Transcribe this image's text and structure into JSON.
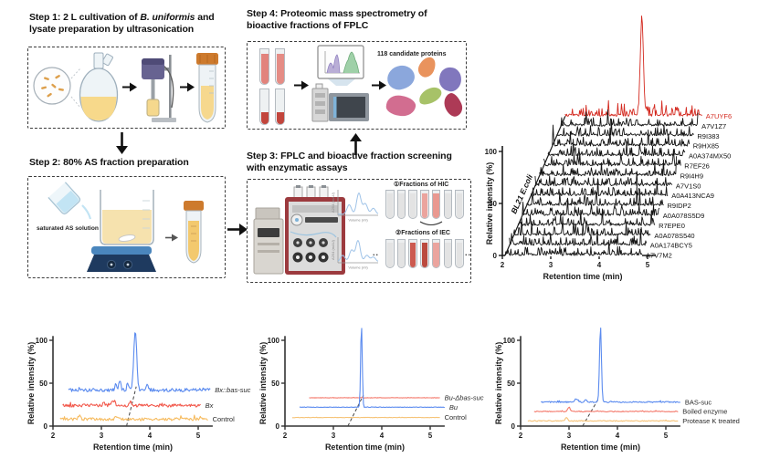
{
  "steps": {
    "step1": {
      "title_prefix": "Step 1: 2 L cultivation of ",
      "title_italic": "B. uniformis",
      "title_suffix": " and lysate preparation by ultrasonication"
    },
    "step2": {
      "title": "Step 2: 80% AS fraction preparation",
      "beaker_label": "saturated AS solution"
    },
    "step3": {
      "title_line1": "Step 3: FPLC and bioactive fraction screening",
      "title_line2": "with enzymatic assays",
      "hic_label": "①Fractions of HIC",
      "iec_label": "②Fractions of IEC",
      "ellipsis": "..",
      "mini_chart_ylabel": "A254 (mAU)",
      "mini_chart_xlabel": "Volume (ml)",
      "mini_charts": [
        {
          "bumps": [
            [
              0.28,
              0.45
            ],
            [
              0.52,
              1.0
            ],
            [
              0.68,
              0.5
            ],
            [
              0.88,
              0.28
            ]
          ]
        },
        {
          "bumps": [
            [
              0.12,
              0.3
            ],
            [
              0.34,
              0.55
            ],
            [
              0.5,
              1.0
            ],
            [
              0.72,
              0.3
            ],
            [
              0.88,
              0.22
            ]
          ]
        }
      ]
    },
    "step4": {
      "title_line1": "Step 4: Proteomic mass spectrometry of",
      "title_line2": "bioactive fractions of FPLC",
      "proteins_label": "118 candidate proteins"
    }
  },
  "chart_data": [
    {
      "type": "line-waterfall",
      "panel": "top-right",
      "ylabel": "Relative intensity (%)",
      "xlabel": "Retention time (min)",
      "yticks": [
        0,
        50,
        100
      ],
      "xticks": [
        2,
        3,
        4,
        5
      ],
      "xlim": [
        2,
        5
      ],
      "diagonal_label": "BL21 E.coli",
      "trace_color": "#141414",
      "highlight_color": "#d42a20",
      "note": "Stacked extracted-ion chromatograms of candidate proteins; A7UYF6 (red, rear trace) shows one dominant peak near 4.2 min, all others are noise-level",
      "traces": [
        {
          "label": "A7UYF6",
          "highlight": true,
          "peak_min": 4.2,
          "seed": 7
        },
        {
          "label": "A7V1Z7",
          "seed": 2
        },
        {
          "label": "R9I383",
          "seed": 3
        },
        {
          "label": "R9HX85",
          "seed": 4
        },
        {
          "label": "A0A374MX50",
          "seed": 5
        },
        {
          "label": "R7EF26",
          "seed": 6
        },
        {
          "label": "R9I4H9",
          "seed": 8
        },
        {
          "label": "A7V1S0",
          "seed": 9
        },
        {
          "label": "A0A413NCA9",
          "seed": 10
        },
        {
          "label": "R9IDP2",
          "seed": 11
        },
        {
          "label": "A0A078S5D9",
          "seed": 12
        },
        {
          "label": "R7EPE0",
          "seed": 13
        },
        {
          "label": "A0A078S540",
          "seed": 14
        },
        {
          "label": "A0A174BCY5",
          "seed": 15
        },
        {
          "label": "A7V7M2",
          "seed": 16
        }
      ]
    },
    {
      "type": "line",
      "panel": "bottom-left",
      "ylabel": "Relative intensity (%)",
      "xlabel": "Retention time (min)",
      "yticks": [
        0,
        50,
        100
      ],
      "xticks": [
        2,
        3,
        4,
        5
      ],
      "xlim": [
        2,
        5.35
      ],
      "dash_line": {
        "t1": 3.52,
        "y1": 0,
        "t2": 3.72,
        "y2": 46
      },
      "series": [
        {
          "label": "Bx::bas-suc",
          "italic": true,
          "color": "#5b8bef",
          "baseline": 42,
          "noise": 2.0,
          "t_start": 2.32,
          "t_end": 5.25,
          "seed": 41,
          "peaks": [
            {
              "t": 3.7,
              "h": 70,
              "w": 0.03
            },
            {
              "t": 3.38,
              "h": 11,
              "w": 0.022
            },
            {
              "t": 3.3,
              "h": 7,
              "w": 0.018
            },
            {
              "t": 3.55,
              "h": 8,
              "w": 0.018
            },
            {
              "t": 3.95,
              "h": 5,
              "w": 0.02
            }
          ]
        },
        {
          "label": "Bx",
          "italic": true,
          "color": "#f2594c",
          "baseline": 24,
          "noise": 1.8,
          "t_start": 2.2,
          "t_end": 5.05,
          "seed": 42,
          "peaks": [
            {
              "t": 3.25,
              "h": 6,
              "w": 0.03
            },
            {
              "t": 3.05,
              "h": 4,
              "w": 0.02
            },
            {
              "t": 3.6,
              "h": 4,
              "w": 0.02
            }
          ]
        },
        {
          "label": "Control",
          "italic": false,
          "color": "#f6bb5f",
          "baseline": 8,
          "noise": 1.6,
          "t_start": 2.15,
          "t_end": 5.2,
          "seed": 43,
          "peaks": [
            {
              "t": 2.55,
              "h": 4,
              "w": 0.02
            },
            {
              "t": 3.3,
              "h": 4,
              "w": 0.02
            }
          ]
        }
      ]
    },
    {
      "type": "line",
      "panel": "bottom-middle",
      "ylabel": "Relative intensity (%)",
      "xlabel": "Retention time (min)",
      "yticks": [
        0,
        50,
        100
      ],
      "xticks": [
        2,
        3,
        4,
        5
      ],
      "xlim": [
        2,
        5.35
      ],
      "dash_line": {
        "t1": 3.3,
        "y1": 0,
        "t2": 3.62,
        "y2": 36
      },
      "series": [
        {
          "label": "Bu-Δbas-suc",
          "italic": true,
          "color": "#f4796b",
          "baseline": 33,
          "noise": 0.25,
          "t_start": 2.5,
          "t_end": 5.2,
          "seed": 51,
          "peaks": []
        },
        {
          "label": "Bu",
          "italic": true,
          "color": "#5b8bef",
          "baseline": 22,
          "noise": 0.25,
          "t_start": 2.3,
          "t_end": 5.3,
          "seed": 52,
          "peaks": [
            {
              "t": 3.58,
              "h": 98,
              "w": 0.016
            }
          ]
        },
        {
          "label": "Control",
          "italic": false,
          "color": "#f6c275",
          "baseline": 10,
          "noise": 0.2,
          "t_start": 2.15,
          "t_end": 5.2,
          "seed": 53,
          "peaks": []
        }
      ]
    },
    {
      "type": "line",
      "panel": "bottom-right",
      "ylabel": "Relative intensity (%)",
      "xlabel": "Retention time (min)",
      "yticks": [
        0,
        50,
        100
      ],
      "xticks": [
        2,
        3,
        4,
        5
      ],
      "xlim": [
        2,
        5.35
      ],
      "dash_line": {
        "t1": 3.28,
        "y1": 0,
        "t2": 3.6,
        "y2": 31
      },
      "series": [
        {
          "label": "BAS-suc",
          "italic": false,
          "color": "#5b8bef",
          "baseline": 28,
          "noise": 0.7,
          "t_start": 2.42,
          "t_end": 5.3,
          "seed": 61,
          "peaks": [
            {
              "t": 3.65,
              "h": 88,
              "w": 0.02
            },
            {
              "t": 3.15,
              "h": 4,
              "w": 0.03
            },
            {
              "t": 3.35,
              "h": 3,
              "w": 0.02
            }
          ]
        },
        {
          "label": "Boiled enzyme",
          "italic": false,
          "color": "#f4796b",
          "baseline": 17,
          "noise": 0.5,
          "t_start": 2.28,
          "t_end": 5.25,
          "seed": 62,
          "peaks": [
            {
              "t": 3.0,
              "h": 5,
              "w": 0.025
            }
          ]
        },
        {
          "label": "Protease K treated",
          "italic": false,
          "color": "#f6c275",
          "baseline": 6,
          "noise": 0.5,
          "t_start": 2.15,
          "t_end": 5.25,
          "seed": 63,
          "peaks": [
            {
              "t": 2.95,
              "h": 4,
              "w": 0.025
            }
          ]
        }
      ]
    }
  ]
}
